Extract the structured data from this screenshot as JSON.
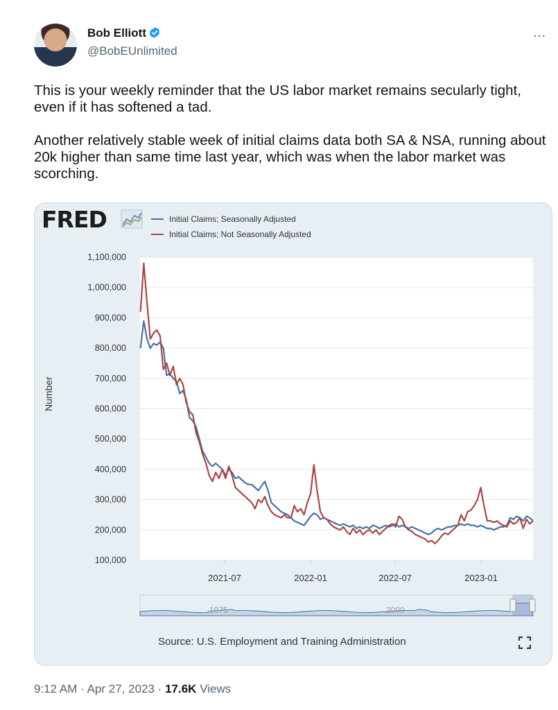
{
  "author": {
    "name": "Bob Elliott",
    "handle": "@BobEUnlimited",
    "verified_color": "#1d9bf0"
  },
  "menu": {
    "more_icon": "…"
  },
  "tweet": {
    "paragraph1": "This is your weekly reminder that the US labor market remains secularly tight, even if it has softened a tad.",
    "paragraph2": "Another relatively stable week of initial claims data both SA & NSA, running about 20k higher than same time last year, which was when the labor market was scorching."
  },
  "fred": {
    "logo": "FRED",
    "source": "Source: U.S. Employment and Training Administration",
    "navigator_labels": [
      "1975",
      "2000"
    ]
  },
  "footer": {
    "time": "9:12 AM",
    "sep1": "·",
    "date": "Apr 27, 2023",
    "sep2": "·",
    "views_count": "17.6K",
    "views_label": "Views"
  },
  "chart_data": {
    "type": "line",
    "title": "",
    "xlabel": "",
    "ylabel": "Number",
    "x_ticks": [
      "2021-07",
      "2022-01",
      "2022-07",
      "2023-01"
    ],
    "y_ticks": [
      "1,100,000",
      "1,000,000",
      "900,000",
      "800,000",
      "700,000",
      "600,000",
      "500,000",
      "400,000",
      "300,000",
      "200,000",
      "100,000"
    ],
    "ylim": [
      100000,
      1100000
    ],
    "xlim": [
      "2021-01",
      "2023-04-22"
    ],
    "grid": true,
    "legend": "top-left",
    "series": [
      {
        "name": "Initial Claims; Seasonally Adjusted",
        "color": "#4572a7",
        "points": [
          [
            "2021-01-02",
            800000
          ],
          [
            "2021-01-09",
            890000
          ],
          [
            "2021-01-16",
            830000
          ],
          [
            "2021-01-23",
            800000
          ],
          [
            "2021-01-30",
            815000
          ],
          [
            "2021-02-06",
            810000
          ],
          [
            "2021-02-13",
            820000
          ],
          [
            "2021-02-20",
            800000
          ],
          [
            "2021-02-27",
            710000
          ],
          [
            "2021-03-06",
            715000
          ],
          [
            "2021-03-13",
            700000
          ],
          [
            "2021-03-20",
            690000
          ],
          [
            "2021-03-27",
            650000
          ],
          [
            "2021-04-03",
            660000
          ],
          [
            "2021-04-10",
            630000
          ],
          [
            "2021-04-17",
            570000
          ],
          [
            "2021-04-24",
            560000
          ],
          [
            "2021-05-01",
            540000
          ],
          [
            "2021-05-08",
            500000
          ],
          [
            "2021-05-15",
            460000
          ],
          [
            "2021-05-22",
            440000
          ],
          [
            "2021-05-29",
            420000
          ],
          [
            "2021-06-05",
            410000
          ],
          [
            "2021-06-12",
            420000
          ],
          [
            "2021-06-19",
            410000
          ],
          [
            "2021-06-26",
            400000
          ],
          [
            "2021-07-03",
            380000
          ],
          [
            "2021-07-10",
            400000
          ],
          [
            "2021-07-17",
            390000
          ],
          [
            "2021-07-24",
            370000
          ],
          [
            "2021-07-31",
            375000
          ],
          [
            "2021-08-07",
            365000
          ],
          [
            "2021-08-14",
            355000
          ],
          [
            "2021-08-21",
            350000
          ],
          [
            "2021-08-28",
            350000
          ],
          [
            "2021-09-04",
            340000
          ],
          [
            "2021-09-11",
            330000
          ],
          [
            "2021-09-18",
            345000
          ],
          [
            "2021-09-25",
            360000
          ],
          [
            "2021-10-02",
            330000
          ],
          [
            "2021-10-09",
            290000
          ],
          [
            "2021-10-16",
            280000
          ],
          [
            "2021-10-23",
            270000
          ],
          [
            "2021-10-30",
            260000
          ],
          [
            "2021-11-06",
            255000
          ],
          [
            "2021-11-13",
            250000
          ],
          [
            "2021-11-20",
            240000
          ],
          [
            "2021-11-27",
            230000
          ],
          [
            "2021-12-04",
            225000
          ],
          [
            "2021-12-11",
            220000
          ],
          [
            "2021-12-18",
            215000
          ],
          [
            "2021-12-25",
            230000
          ],
          [
            "2022-01-01",
            245000
          ],
          [
            "2022-01-08",
            255000
          ],
          [
            "2022-01-15",
            250000
          ],
          [
            "2022-01-22",
            235000
          ],
          [
            "2022-01-29",
            240000
          ],
          [
            "2022-02-05",
            235000
          ],
          [
            "2022-02-12",
            230000
          ],
          [
            "2022-02-19",
            225000
          ],
          [
            "2022-02-26",
            220000
          ],
          [
            "2022-03-05",
            215000
          ],
          [
            "2022-03-12",
            220000
          ],
          [
            "2022-03-19",
            215000
          ],
          [
            "2022-03-26",
            210000
          ],
          [
            "2022-04-02",
            215000
          ],
          [
            "2022-04-09",
            205000
          ],
          [
            "2022-04-16",
            210000
          ],
          [
            "2022-04-23",
            205000
          ],
          [
            "2022-04-30",
            210000
          ],
          [
            "2022-05-07",
            205000
          ],
          [
            "2022-05-14",
            215000
          ],
          [
            "2022-05-21",
            212000
          ],
          [
            "2022-05-28",
            205000
          ],
          [
            "2022-06-04",
            210000
          ],
          [
            "2022-06-11",
            215000
          ],
          [
            "2022-06-18",
            210000
          ],
          [
            "2022-06-25",
            215000
          ],
          [
            "2022-07-02",
            220000
          ],
          [
            "2022-07-09",
            210000
          ],
          [
            "2022-07-16",
            215000
          ],
          [
            "2022-07-23",
            210000
          ],
          [
            "2022-07-30",
            205000
          ],
          [
            "2022-08-06",
            210000
          ],
          [
            "2022-08-13",
            205000
          ],
          [
            "2022-08-20",
            200000
          ],
          [
            "2022-08-27",
            195000
          ],
          [
            "2022-09-03",
            190000
          ],
          [
            "2022-09-10",
            185000
          ],
          [
            "2022-09-17",
            190000
          ],
          [
            "2022-09-24",
            200000
          ],
          [
            "2022-10-01",
            205000
          ],
          [
            "2022-10-08",
            200000
          ],
          [
            "2022-10-15",
            205000
          ],
          [
            "2022-10-22",
            210000
          ],
          [
            "2022-10-29",
            210000
          ],
          [
            "2022-11-05",
            215000
          ],
          [
            "2022-11-12",
            215000
          ],
          [
            "2022-11-19",
            220000
          ],
          [
            "2022-11-26",
            215000
          ],
          [
            "2022-12-03",
            220000
          ],
          [
            "2022-12-10",
            215000
          ],
          [
            "2022-12-17",
            215000
          ],
          [
            "2022-12-24",
            210000
          ],
          [
            "2022-12-31",
            215000
          ],
          [
            "2023-01-07",
            210000
          ],
          [
            "2023-01-14",
            205000
          ],
          [
            "2023-01-21",
            205000
          ],
          [
            "2023-01-28",
            200000
          ],
          [
            "2023-02-04",
            205000
          ],
          [
            "2023-02-11",
            210000
          ],
          [
            "2023-02-18",
            210000
          ],
          [
            "2023-02-25",
            215000
          ],
          [
            "2023-03-04",
            240000
          ],
          [
            "2023-03-11",
            235000
          ],
          [
            "2023-03-18",
            245000
          ],
          [
            "2023-03-25",
            240000
          ],
          [
            "2023-04-01",
            230000
          ],
          [
            "2023-04-08",
            245000
          ],
          [
            "2023-04-15",
            240000
          ],
          [
            "2023-04-22",
            230000
          ]
        ]
      },
      {
        "name": "Initial Claims; Not Seasonally Adjusted",
        "color": "#aa4643",
        "points": [
          [
            "2021-01-02",
            920000
          ],
          [
            "2021-01-09",
            1080000
          ],
          [
            "2021-01-16",
            950000
          ],
          [
            "2021-01-23",
            830000
          ],
          [
            "2021-01-30",
            850000
          ],
          [
            "2021-02-06",
            860000
          ],
          [
            "2021-02-13",
            840000
          ],
          [
            "2021-02-20",
            730000
          ],
          [
            "2021-02-27",
            750000
          ],
          [
            "2021-03-06",
            710000
          ],
          [
            "2021-03-13",
            740000
          ],
          [
            "2021-03-20",
            680000
          ],
          [
            "2021-03-27",
            700000
          ],
          [
            "2021-04-03",
            680000
          ],
          [
            "2021-04-10",
            620000
          ],
          [
            "2021-04-17",
            590000
          ],
          [
            "2021-04-24",
            580000
          ],
          [
            "2021-05-01",
            520000
          ],
          [
            "2021-05-08",
            490000
          ],
          [
            "2021-05-15",
            450000
          ],
          [
            "2021-05-22",
            420000
          ],
          [
            "2021-05-29",
            380000
          ],
          [
            "2021-06-05",
            360000
          ],
          [
            "2021-06-12",
            390000
          ],
          [
            "2021-06-19",
            370000
          ],
          [
            "2021-06-26",
            400000
          ],
          [
            "2021-07-03",
            370000
          ],
          [
            "2021-07-10",
            410000
          ],
          [
            "2021-07-17",
            380000
          ],
          [
            "2021-07-24",
            340000
          ],
          [
            "2021-07-31",
            330000
          ],
          [
            "2021-08-07",
            320000
          ],
          [
            "2021-08-14",
            310000
          ],
          [
            "2021-08-21",
            300000
          ],
          [
            "2021-08-28",
            290000
          ],
          [
            "2021-09-04",
            270000
          ],
          [
            "2021-09-11",
            300000
          ],
          [
            "2021-09-18",
            290000
          ],
          [
            "2021-09-25",
            310000
          ],
          [
            "2021-10-02",
            280000
          ],
          [
            "2021-10-09",
            260000
          ],
          [
            "2021-10-16",
            250000
          ],
          [
            "2021-10-23",
            245000
          ],
          [
            "2021-10-30",
            240000
          ],
          [
            "2021-11-06",
            250000
          ],
          [
            "2021-11-13",
            240000
          ],
          [
            "2021-11-20",
            240000
          ],
          [
            "2021-11-27",
            280000
          ],
          [
            "2021-12-04",
            260000
          ],
          [
            "2021-12-11",
            270000
          ],
          [
            "2021-12-18",
            250000
          ],
          [
            "2021-12-25",
            290000
          ],
          [
            "2022-01-01",
            320000
          ],
          [
            "2022-01-08",
            415000
          ],
          [
            "2022-01-15",
            330000
          ],
          [
            "2022-01-22",
            260000
          ],
          [
            "2022-01-29",
            240000
          ],
          [
            "2022-02-05",
            235000
          ],
          [
            "2022-02-12",
            220000
          ],
          [
            "2022-02-19",
            210000
          ],
          [
            "2022-02-26",
            205000
          ],
          [
            "2022-03-05",
            200000
          ],
          [
            "2022-03-12",
            210000
          ],
          [
            "2022-03-19",
            195000
          ],
          [
            "2022-03-26",
            185000
          ],
          [
            "2022-04-02",
            205000
          ],
          [
            "2022-04-09",
            190000
          ],
          [
            "2022-04-16",
            200000
          ],
          [
            "2022-04-23",
            185000
          ],
          [
            "2022-04-30",
            195000
          ],
          [
            "2022-05-07",
            200000
          ],
          [
            "2022-05-14",
            190000
          ],
          [
            "2022-05-21",
            200000
          ],
          [
            "2022-05-28",
            185000
          ],
          [
            "2022-06-04",
            195000
          ],
          [
            "2022-06-11",
            205000
          ],
          [
            "2022-06-18",
            215000
          ],
          [
            "2022-06-25",
            220000
          ],
          [
            "2022-07-02",
            210000
          ],
          [
            "2022-07-09",
            245000
          ],
          [
            "2022-07-16",
            235000
          ],
          [
            "2022-07-23",
            210000
          ],
          [
            "2022-07-30",
            200000
          ],
          [
            "2022-08-06",
            195000
          ],
          [
            "2022-08-13",
            185000
          ],
          [
            "2022-08-20",
            180000
          ],
          [
            "2022-08-27",
            175000
          ],
          [
            "2022-09-03",
            170000
          ],
          [
            "2022-09-10",
            160000
          ],
          [
            "2022-09-17",
            165000
          ],
          [
            "2022-09-24",
            155000
          ],
          [
            "2022-10-01",
            165000
          ],
          [
            "2022-10-08",
            180000
          ],
          [
            "2022-10-15",
            190000
          ],
          [
            "2022-10-22",
            185000
          ],
          [
            "2022-10-29",
            195000
          ],
          [
            "2022-11-05",
            205000
          ],
          [
            "2022-11-12",
            215000
          ],
          [
            "2022-11-19",
            250000
          ],
          [
            "2022-11-26",
            230000
          ],
          [
            "2022-12-03",
            260000
          ],
          [
            "2022-12-10",
            265000
          ],
          [
            "2022-12-17",
            280000
          ],
          [
            "2022-12-24",
            300000
          ],
          [
            "2022-12-31",
            340000
          ],
          [
            "2023-01-07",
            280000
          ],
          [
            "2023-01-14",
            230000
          ],
          [
            "2023-01-21",
            230000
          ],
          [
            "2023-01-28",
            225000
          ],
          [
            "2023-02-04",
            230000
          ],
          [
            "2023-02-11",
            220000
          ],
          [
            "2023-02-18",
            215000
          ],
          [
            "2023-02-25",
            210000
          ],
          [
            "2023-03-04",
            230000
          ],
          [
            "2023-03-11",
            220000
          ],
          [
            "2023-03-18",
            225000
          ],
          [
            "2023-03-25",
            240000
          ],
          [
            "2023-04-01",
            205000
          ],
          [
            "2023-04-08",
            235000
          ],
          [
            "2023-04-15",
            220000
          ],
          [
            "2023-04-22",
            230000
          ]
        ]
      }
    ]
  }
}
